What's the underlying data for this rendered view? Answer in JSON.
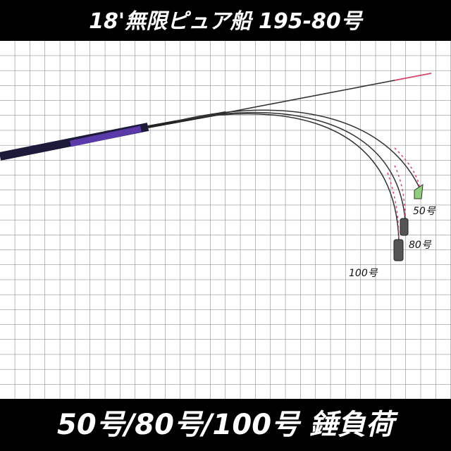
{
  "header": {
    "title": "18'無限ピュア船 195-80号"
  },
  "labels": [
    "50号",
    "80号",
    "100号"
  ],
  "footer": {
    "text": "50号/80号/100号 錘負荷"
  }
}
